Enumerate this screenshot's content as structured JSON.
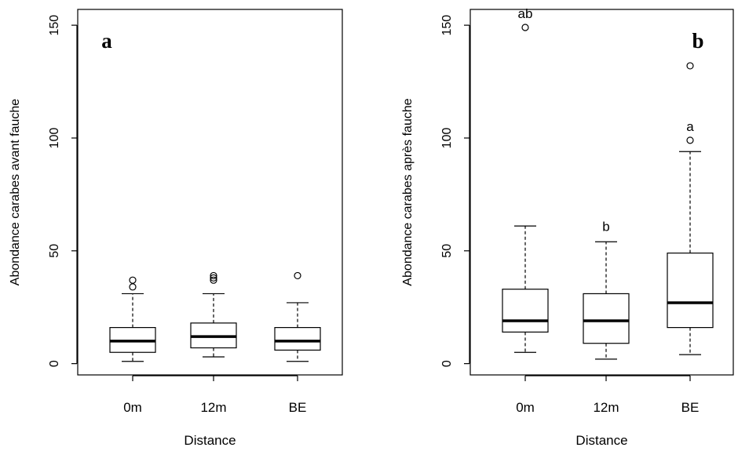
{
  "chart_data": [
    {
      "type": "boxplot",
      "panel_label": "a",
      "xlabel": "Distance",
      "ylabel": "Abondance carabes avant fauche",
      "ylim": [
        -5,
        157
      ],
      "yticks": [
        0,
        50,
        100,
        150
      ],
      "categories": [
        "0m",
        "12m",
        "BE"
      ],
      "boxes": [
        {
          "whisker_low": 1,
          "q1": 5,
          "median": 10,
          "q3": 16,
          "whisker_high": 31,
          "outliers": [
            34,
            37
          ],
          "letter": ""
        },
        {
          "whisker_low": 3,
          "q1": 7,
          "median": 12,
          "q3": 18,
          "whisker_high": 31,
          "outliers": [
            37,
            38,
            39
          ],
          "letter": ""
        },
        {
          "whisker_low": 1,
          "q1": 6,
          "median": 10,
          "q3": 16,
          "whisker_high": 27,
          "outliers": [
            39
          ],
          "letter": ""
        }
      ]
    },
    {
      "type": "boxplot",
      "panel_label": "b",
      "xlabel": "Distance",
      "ylabel": "Abondance carabes après fauche",
      "ylim": [
        -5,
        157
      ],
      "yticks": [
        0,
        50,
        100,
        150
      ],
      "categories": [
        "0m",
        "12m",
        "BE"
      ],
      "boxes": [
        {
          "whisker_low": 5,
          "q1": 14,
          "median": 19,
          "q3": 33,
          "whisker_high": 61,
          "outliers": [
            149
          ],
          "letter": "ab"
        },
        {
          "whisker_low": 2,
          "q1": 9,
          "median": 19,
          "q3": 31,
          "whisker_high": 54,
          "outliers": [],
          "letter": "b"
        },
        {
          "whisker_low": 4,
          "q1": 16,
          "median": 27,
          "q3": 49,
          "whisker_high": 94,
          "outliers": [
            99,
            132
          ],
          "letter": "a"
        }
      ]
    }
  ]
}
